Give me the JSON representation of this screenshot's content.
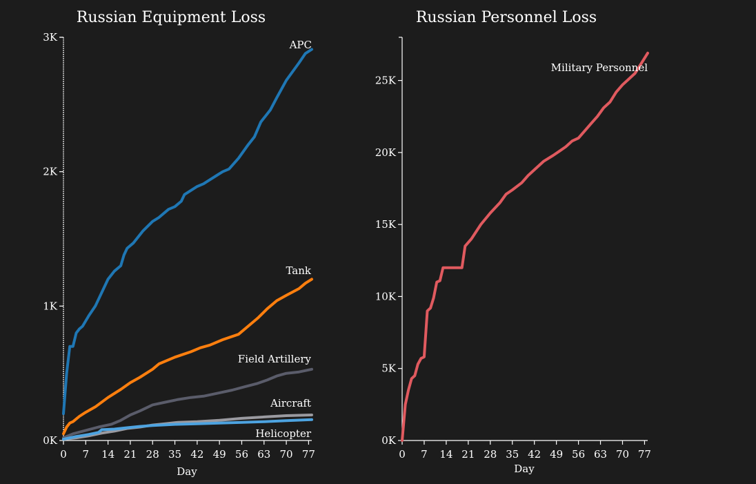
{
  "chart_data": [
    {
      "type": "line",
      "title": "Russian Equipment Loss",
      "xlabel": "Day",
      "ylabel": "",
      "xlim": [
        0,
        78
      ],
      "ylim": [
        0,
        3000
      ],
      "x_ticks": [
        "0",
        "7",
        "14",
        "21",
        "28",
        "35",
        "42",
        "49",
        "56",
        "63",
        "70",
        "77"
      ],
      "y_ticks": [
        "0K",
        "1K",
        "2K",
        "3K"
      ],
      "x_tick_values": [
        0,
        7,
        14,
        21,
        28,
        35,
        42,
        49,
        56,
        63,
        70,
        77
      ],
      "y_tick_values": [
        0,
        1000,
        2000,
        3000
      ],
      "grid": false,
      "series": [
        {
          "name": "APC",
          "color": "#1f77b4",
          "x": [
            0,
            1,
            2,
            3,
            4,
            5,
            6,
            8,
            10,
            12,
            14,
            16,
            18,
            19,
            20,
            22,
            25,
            28,
            30,
            33,
            35,
            37,
            38,
            40,
            42,
            44,
            46,
            48,
            50,
            52,
            55,
            58,
            60,
            62,
            65,
            67,
            70,
            74,
            76,
            78
          ],
          "values": [
            200,
            500,
            700,
            700,
            800,
            830,
            850,
            930,
            1000,
            1100,
            1200,
            1260,
            1300,
            1380,
            1430,
            1470,
            1560,
            1630,
            1660,
            1720,
            1740,
            1780,
            1830,
            1860,
            1890,
            1910,
            1940,
            1970,
            2000,
            2020,
            2100,
            2200,
            2260,
            2370,
            2460,
            2550,
            2680,
            2810,
            2880,
            2910
          ]
        },
        {
          "name": "Tank",
          "color": "#ff7f0e",
          "x": [
            0,
            1,
            2,
            3,
            5,
            7,
            10,
            14,
            18,
            21,
            24,
            28,
            30,
            35,
            40,
            43,
            46,
            50,
            55,
            58,
            61,
            64,
            67,
            70,
            74,
            76,
            78
          ],
          "values": [
            50,
            100,
            130,
            140,
            180,
            210,
            250,
            320,
            380,
            430,
            470,
            530,
            570,
            620,
            660,
            690,
            710,
            750,
            790,
            850,
            910,
            980,
            1040,
            1080,
            1130,
            1170,
            1200
          ]
        },
        {
          "name": "Field Artillery",
          "color": "#5a5c6a",
          "x": [
            0,
            3,
            7,
            11,
            15,
            18,
            21,
            24,
            28,
            32,
            36,
            40,
            44,
            49,
            53,
            57,
            61,
            64,
            67,
            70,
            74,
            78
          ],
          "values": [
            20,
            50,
            75,
            100,
            120,
            150,
            190,
            220,
            265,
            285,
            305,
            320,
            330,
            355,
            375,
            400,
            425,
            450,
            480,
            500,
            510,
            530
          ]
        },
        {
          "name": "Aircraft",
          "color": "#9a9aa0",
          "x": [
            0,
            4,
            8,
            12,
            16,
            20,
            24,
            28,
            32,
            36,
            42,
            49,
            56,
            63,
            70,
            78
          ],
          "values": [
            10,
            20,
            35,
            55,
            70,
            90,
            100,
            115,
            125,
            135,
            140,
            150,
            165,
            175,
            185,
            190
          ]
        },
        {
          "name": "Helicopter",
          "color": "#4da3e0",
          "x": [
            0,
            4,
            8,
            11,
            12,
            16,
            20,
            24,
            28,
            35,
            42,
            49,
            56,
            63,
            70,
            78
          ],
          "values": [
            10,
            30,
            45,
            60,
            80,
            85,
            95,
            105,
            112,
            120,
            125,
            130,
            135,
            140,
            148,
            155
          ]
        }
      ]
    },
    {
      "type": "line",
      "title": "Russian Personnel Loss",
      "xlabel": "Day",
      "ylabel": "",
      "xlim": [
        0,
        78
      ],
      "ylim": [
        0,
        28000
      ],
      "x_ticks": [
        "0",
        "7",
        "14",
        "21",
        "28",
        "35",
        "42",
        "49",
        "56",
        "63",
        "70",
        "77"
      ],
      "y_ticks": [
        "0K",
        "5K",
        "10K",
        "15K",
        "20K",
        "25K"
      ],
      "x_tick_values": [
        0,
        7,
        14,
        21,
        28,
        35,
        42,
        49,
        56,
        63,
        70,
        77
      ],
      "y_tick_values": [
        0,
        5000,
        10000,
        15000,
        20000,
        25000
      ],
      "grid": false,
      "series": [
        {
          "name": "Military Personnel",
          "color": "#e05a5f",
          "x": [
            0,
            1,
            2,
            3,
            4,
            5,
            6,
            7,
            8,
            9,
            10,
            11,
            12,
            13,
            15,
            17,
            19,
            20,
            22,
            25,
            28,
            31,
            33,
            35,
            38,
            40,
            42,
            45,
            48,
            50,
            52,
            54,
            56,
            58,
            60,
            62,
            64,
            66,
            68,
            70,
            72,
            74,
            76,
            78
          ],
          "values": [
            0,
            2500,
            3500,
            4300,
            4500,
            5300,
            5700,
            5800,
            9000,
            9200,
            9900,
            11000,
            11100,
            12000,
            12000,
            12000,
            12000,
            13500,
            14000,
            15000,
            15800,
            16500,
            17100,
            17400,
            17900,
            18400,
            18800,
            19400,
            19800,
            20100,
            20400,
            20800,
            21000,
            21500,
            22000,
            22500,
            23100,
            23500,
            24200,
            24700,
            25100,
            25500,
            26200,
            26900
          ]
        }
      ]
    }
  ]
}
